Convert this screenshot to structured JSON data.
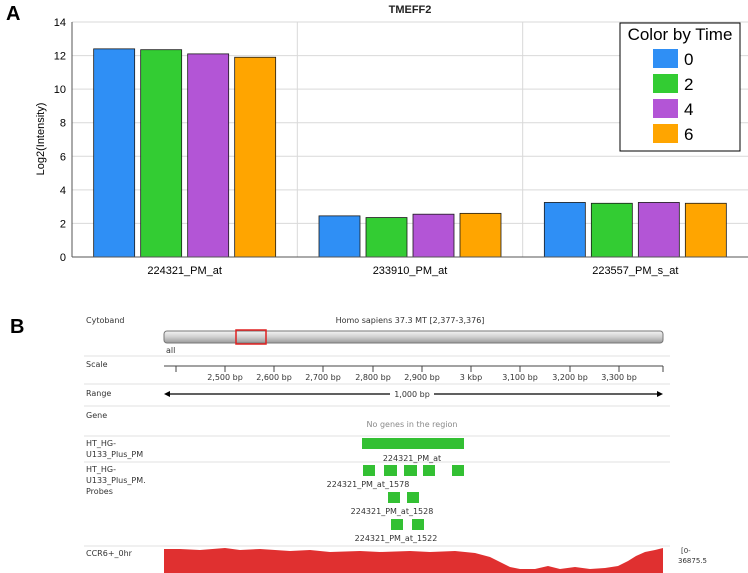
{
  "panel_a": {
    "letter": "A",
    "legend": {
      "title": "Color by Time",
      "items": [
        {
          "label": "0",
          "color": "#2f8ff5"
        },
        {
          "label": "2",
          "color": "#33cc33"
        },
        {
          "label": "4",
          "color": "#b355d6"
        },
        {
          "label": "6",
          "color": "#ffa500"
        }
      ]
    }
  },
  "chart_data": {
    "type": "bar",
    "title": "TMEFF2",
    "xlabel": "",
    "ylabel": "Log2(Intensity)",
    "ylim": [
      0,
      14
    ],
    "yticks": [
      "0",
      "2",
      "4",
      "6",
      "8",
      "10",
      "12",
      "14"
    ],
    "grid": true,
    "legend_position": "top-right",
    "categories": [
      "224321_PM_at",
      "233910_PM_at",
      "223557_PM_s_at"
    ],
    "series": [
      {
        "name": "0",
        "color": "#2f8ff5",
        "values": [
          12.4,
          2.45,
          3.25
        ]
      },
      {
        "name": "2",
        "color": "#33cc33",
        "values": [
          12.35,
          2.35,
          3.2
        ]
      },
      {
        "name": "4",
        "color": "#b355d6",
        "values": [
          12.1,
          2.55,
          3.25
        ]
      },
      {
        "name": "6",
        "color": "#ffa500",
        "values": [
          11.9,
          2.6,
          3.2
        ]
      }
    ]
  },
  "panel_b": {
    "letter": "B",
    "cytoband": {
      "label": "Cytoband",
      "title": "Homo sapiens 37.3 MT [2,377-3,376]",
      "chrom_label": "all"
    },
    "scale": {
      "label": "Scale",
      "ticks": [
        "2,500 bp",
        "2,600 bp",
        "2,700 bp",
        "2,800 bp",
        "2,900 bp",
        "3 kbp",
        "3,100 bp",
        "3,200 bp",
        "3,300 bp"
      ]
    },
    "range": {
      "label": "Range",
      "value": "1,000 bp"
    },
    "gene": {
      "label": "Gene",
      "message": "No genes in the region"
    },
    "tracks": [
      {
        "label_lines": [
          "HT_HG-",
          "U133_Plus_PM"
        ],
        "feature": "224321_PM_at"
      },
      {
        "label_lines": [
          "HT_HG-",
          "U133_Plus_PM.",
          "Probes"
        ],
        "features": [
          "224321_PM_at_1578",
          "224321_PM_at_1528",
          "224321_PM_at_1522"
        ]
      }
    ],
    "coverage": {
      "label": "CCR6+_0hr",
      "range_label_top": "[0-",
      "range_label_bottom": "36875.5"
    },
    "feature_color": "#33c033",
    "coverage_color": "#e03030"
  }
}
